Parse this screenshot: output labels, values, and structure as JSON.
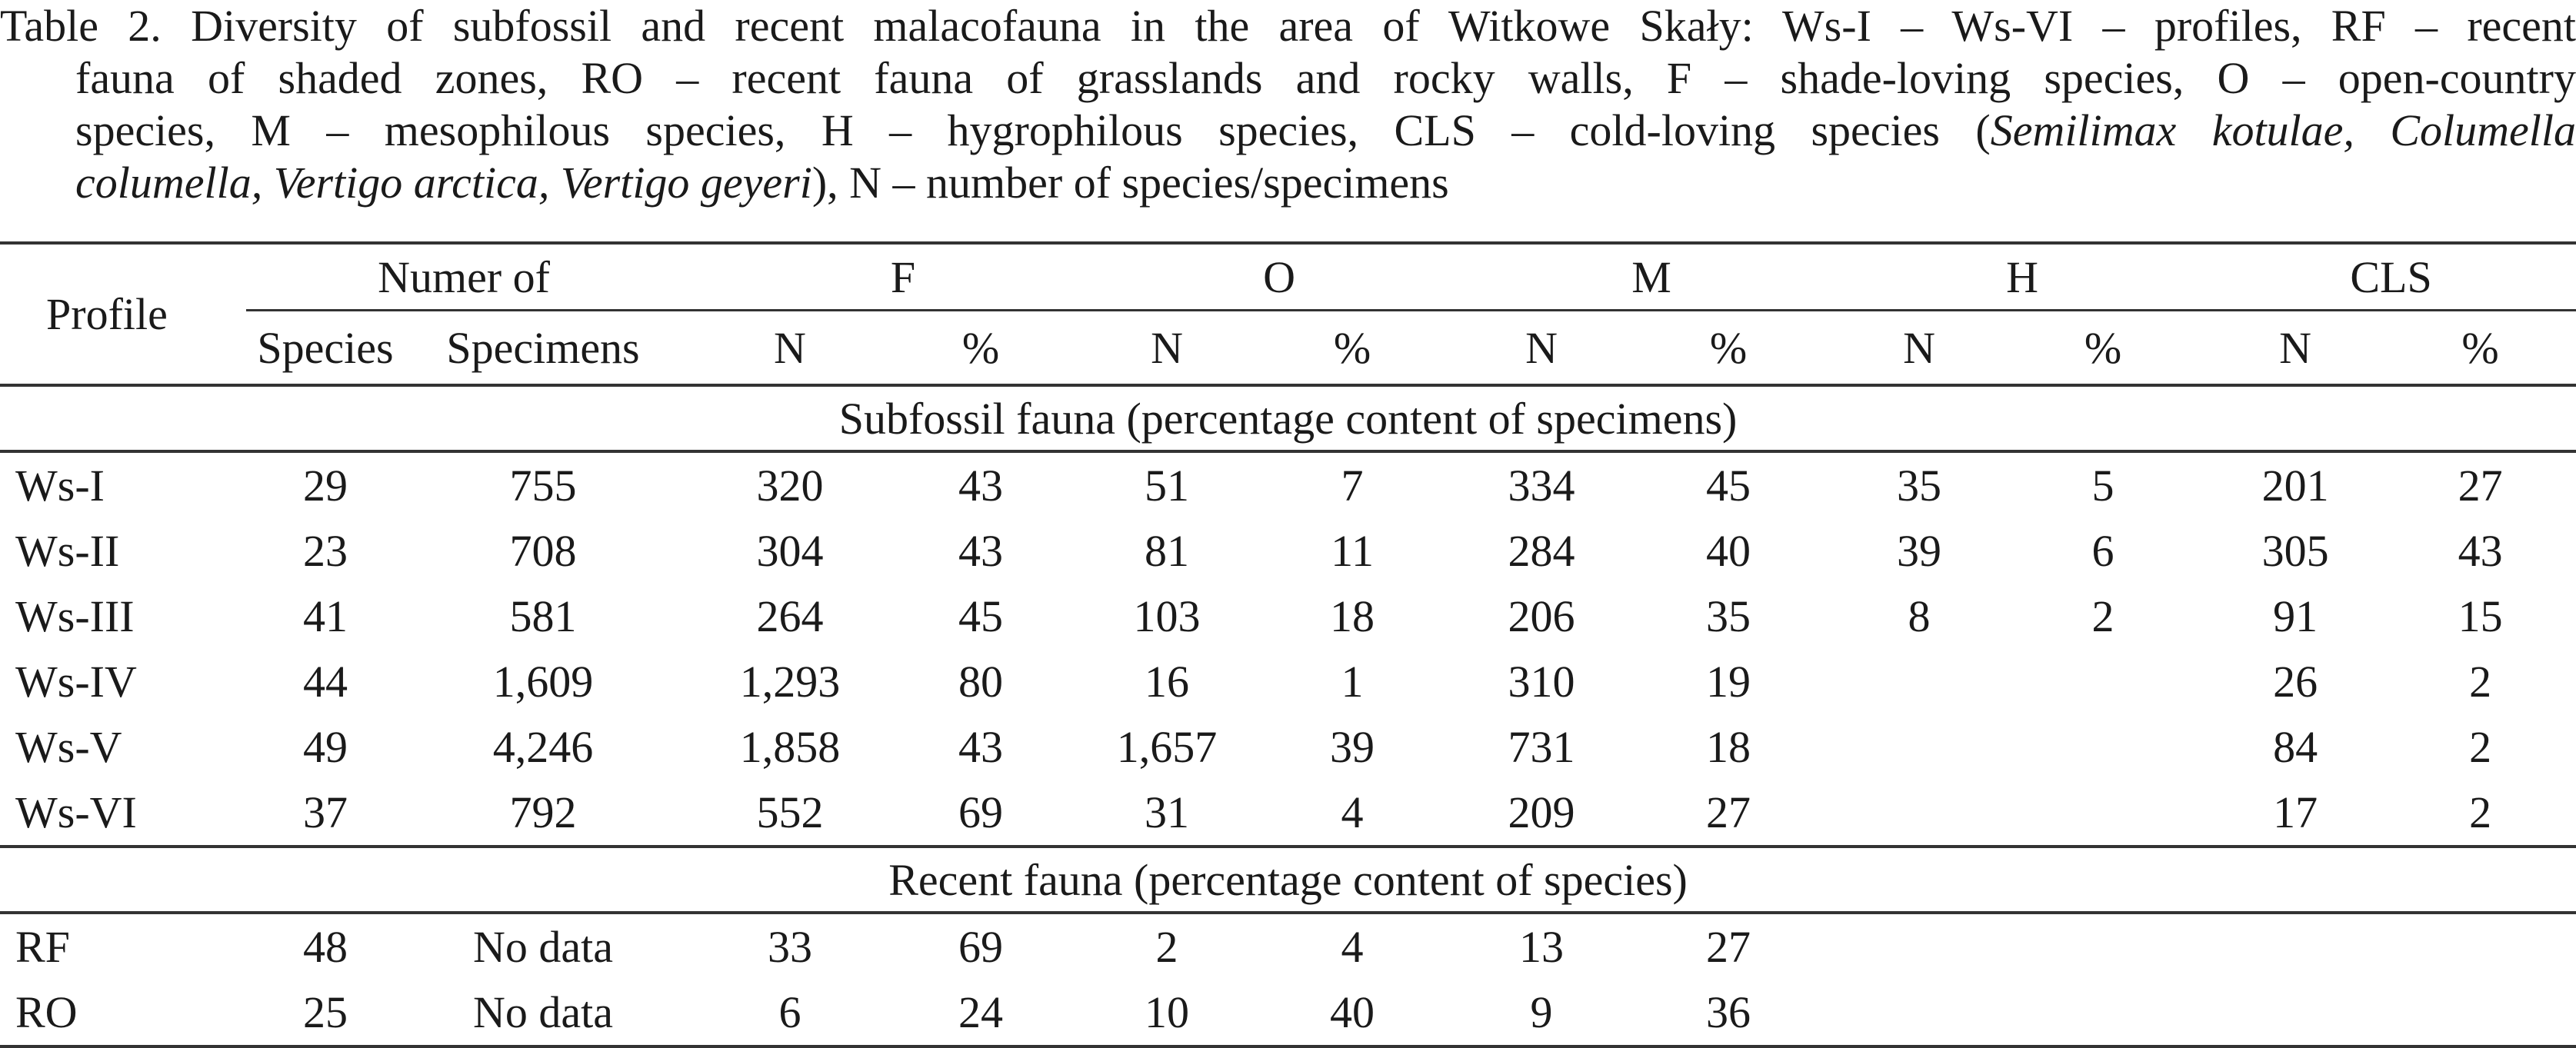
{
  "caption": {
    "line1": "Table 2. Diversity of subfossil and recent malacofauna in the area of Witkowe Skały: Ws-I – Ws-VI – profiles, RF – recent",
    "line2": "fauna of shaded zones, RO – recent fauna of grasslands and rocky walls, F – shade-loving species, O – open-country",
    "line3a": "species, M – mesophilous species, H – hygrophilous species, CLS – cold-loving species (",
    "line3b": "Semilimax kotulae, Columella",
    "line4a": "columella, Vertigo arctica, Vertigo geyeri",
    "line4b": "), N – number of species/specimens"
  },
  "header": {
    "profile": "Profile",
    "numer_of": "Numer of",
    "groups": [
      "F",
      "O",
      "M",
      "H",
      "CLS"
    ],
    "species": "Species",
    "specimens": "Specimens",
    "n": "N",
    "pct": "%"
  },
  "sections": [
    {
      "title": "Subfossil fauna (percentage content of specimens)",
      "rows": [
        [
          "Ws-I",
          "29",
          "755",
          "320",
          "43",
          "51",
          "7",
          "334",
          "45",
          "35",
          "5",
          "201",
          "27"
        ],
        [
          "Ws-II",
          "23",
          "708",
          "304",
          "43",
          "81",
          "11",
          "284",
          "40",
          "39",
          "6",
          "305",
          "43"
        ],
        [
          "Ws-III",
          "41",
          "581",
          "264",
          "45",
          "103",
          "18",
          "206",
          "35",
          "8",
          "2",
          "91",
          "15"
        ],
        [
          "Ws-IV",
          "44",
          "1,609",
          "1,293",
          "80",
          "16",
          "1",
          "310",
          "19",
          "",
          "",
          "26",
          "2"
        ],
        [
          "Ws-V",
          "49",
          "4,246",
          "1,858",
          "43",
          "1,657",
          "39",
          "731",
          "18",
          "",
          "",
          "84",
          "2"
        ],
        [
          "Ws-VI",
          "37",
          "792",
          "552",
          "69",
          "31",
          "4",
          "209",
          "27",
          "",
          "",
          "17",
          "2"
        ]
      ]
    },
    {
      "title": "Recent fauna (percentage content of species)",
      "rows": [
        [
          "RF",
          "48",
          "No data",
          "33",
          "69",
          "2",
          "4",
          "13",
          "27",
          "",
          "",
          "",
          ""
        ],
        [
          "RO",
          "25",
          "No data",
          "6",
          "24",
          "10",
          "40",
          "9",
          "36",
          "",
          "",
          "",
          ""
        ]
      ]
    }
  ]
}
